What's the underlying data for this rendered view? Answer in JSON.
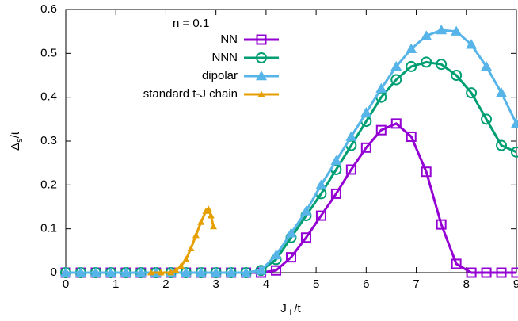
{
  "chart_data": {
    "type": "line",
    "annotation": "n = 0.1",
    "xlabel": {
      "base": "J",
      "sub": "⊥",
      "tail": "/t"
    },
    "ylabel": {
      "base": "Δ",
      "sub": "s",
      "tail": "/t"
    },
    "xlim": [
      0,
      9
    ],
    "ylim": [
      0,
      0.6
    ],
    "xticks": [
      0,
      1,
      2,
      3,
      4,
      5,
      6,
      7,
      8,
      9
    ],
    "yticks": [
      0,
      0.1,
      0.2,
      0.3,
      0.4,
      0.5,
      0.6
    ],
    "grid": false,
    "legend": "top-left",
    "series": [
      {
        "name": "NN",
        "color": "#9400d3",
        "marker": "square",
        "x": [
          0,
          0.3,
          0.6,
          0.9,
          1.2,
          1.5,
          1.8,
          2.1,
          2.4,
          2.7,
          3.0,
          3.3,
          3.6,
          3.9,
          4.2,
          4.5,
          4.8,
          5.1,
          5.4,
          5.7,
          6.0,
          6.3,
          6.6,
          6.9,
          7.2,
          7.5,
          7.8,
          8.1,
          8.4,
          8.7,
          9.0
        ],
        "values": [
          0,
          0,
          0,
          0,
          0,
          0,
          0,
          0,
          0,
          0,
          0,
          0,
          0,
          0,
          0.005,
          0.035,
          0.08,
          0.13,
          0.18,
          0.235,
          0.285,
          0.325,
          0.34,
          0.31,
          0.23,
          0.11,
          0.02,
          0,
          0,
          0,
          0
        ]
      },
      {
        "name": "NNN",
        "color": "#009e73",
        "marker": "circle",
        "x": [
          0,
          0.3,
          0.6,
          0.9,
          1.2,
          1.5,
          1.8,
          2.1,
          2.4,
          2.7,
          3.0,
          3.3,
          3.6,
          3.9,
          4.2,
          4.5,
          4.8,
          5.1,
          5.4,
          5.7,
          6.0,
          6.3,
          6.6,
          6.9,
          7.2,
          7.5,
          7.8,
          8.1,
          8.4,
          8.7,
          9.0
        ],
        "values": [
          0,
          0,
          0,
          0,
          0,
          0,
          0,
          0,
          0,
          0,
          0,
          0,
          0,
          0.005,
          0.03,
          0.08,
          0.13,
          0.18,
          0.235,
          0.29,
          0.345,
          0.4,
          0.44,
          0.47,
          0.48,
          0.475,
          0.45,
          0.41,
          0.35,
          0.29,
          0.275
        ]
      },
      {
        "name": "dipolar",
        "color": "#56b4e9",
        "marker": "triangle",
        "x": [
          0,
          0.3,
          0.6,
          0.9,
          1.2,
          1.5,
          1.8,
          2.1,
          2.4,
          2.7,
          3.0,
          3.3,
          3.6,
          3.9,
          4.2,
          4.5,
          4.8,
          5.1,
          5.4,
          5.7,
          6.0,
          6.3,
          6.6,
          6.9,
          7.2,
          7.5,
          7.8,
          8.1,
          8.4,
          8.7,
          9.0
        ],
        "values": [
          0,
          0,
          0,
          0,
          0,
          0,
          0,
          0,
          0,
          0,
          0,
          0,
          0,
          0.005,
          0.04,
          0.09,
          0.14,
          0.2,
          0.255,
          0.31,
          0.365,
          0.42,
          0.47,
          0.51,
          0.54,
          0.553,
          0.55,
          0.52,
          0.47,
          0.41,
          0.34
        ]
      },
      {
        "name": "standard t-J chain",
        "color": "#e69f00",
        "marker": "small-triangle",
        "x": [
          1.7,
          1.9,
          2.1,
          2.2,
          2.3,
          2.4,
          2.5,
          2.6,
          2.7,
          2.8,
          2.85,
          2.9,
          2.95
        ],
        "values": [
          0,
          0,
          0,
          0.005,
          0.015,
          0.03,
          0.055,
          0.085,
          0.115,
          0.14,
          0.145,
          0.13,
          0.105
        ]
      }
    ]
  }
}
